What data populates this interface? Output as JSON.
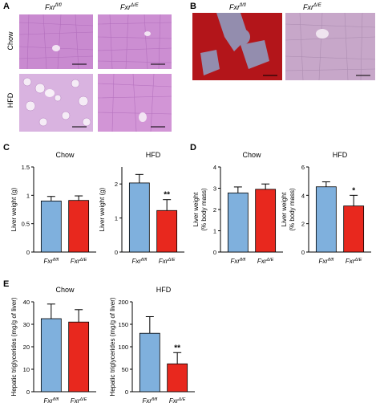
{
  "panels": {
    "A": "A",
    "B": "B",
    "C": "C",
    "D": "D",
    "E": "E"
  },
  "genotypes": {
    "wt_base": "Fxr",
    "wt_sup": "fl/fl",
    "ko_base": "Fxr",
    "ko_sup": "Δ/E"
  },
  "rows": {
    "chow": "Chow",
    "hfd": "HFD"
  },
  "colors": {
    "control": "#7fb0dd",
    "knockout": "#e8281e",
    "he_bg": "#c98ad0",
    "oilred": "#b3151a"
  },
  "chart_data": [
    {
      "id": "C-chow",
      "type": "bar",
      "title": "Chow",
      "ylabel": "Liver weight (g)",
      "ylim": [
        0,
        1.5
      ],
      "yticks": [
        0,
        0.5,
        1.0,
        1.5
      ],
      "categories": [
        "Fxr fl/fl",
        "Fxr Δ/E"
      ],
      "values": [
        0.9,
        0.91
      ],
      "errors": [
        0.08,
        0.08
      ],
      "significance": [
        "",
        ""
      ]
    },
    {
      "id": "C-hfd",
      "type": "bar",
      "title": "HFD",
      "ylabel": "Liver weight (g)",
      "ylim": [
        0,
        2.5
      ],
      "yticks": [
        0,
        1,
        2
      ],
      "categories": [
        "Fxr fl/fl",
        "Fxr Δ/E"
      ],
      "values": [
        2.03,
        1.22
      ],
      "errors": [
        0.25,
        0.32
      ],
      "significance": [
        "",
        "**"
      ]
    },
    {
      "id": "D-chow",
      "type": "bar",
      "title": "Chow",
      "ylabel": "Liver weight (% body mass)",
      "ylim": [
        0,
        4
      ],
      "yticks": [
        0,
        1,
        2,
        3,
        4
      ],
      "categories": [
        "Fxr fl/fl",
        "Fxr Δ/E"
      ],
      "values": [
        2.78,
        2.95
      ],
      "errors": [
        0.28,
        0.25
      ],
      "significance": [
        "",
        ""
      ]
    },
    {
      "id": "D-hfd",
      "type": "bar",
      "title": "HFD",
      "ylabel": "Liver weight (% body mass)",
      "ylim": [
        0,
        6
      ],
      "yticks": [
        0,
        2,
        4,
        6
      ],
      "categories": [
        "Fxr fl/fl",
        "Fxr Δ/E"
      ],
      "values": [
        4.6,
        3.25
      ],
      "errors": [
        0.35,
        0.75
      ],
      "significance": [
        "",
        "*"
      ]
    },
    {
      "id": "E-chow",
      "type": "bar",
      "title": "Chow",
      "ylabel": "Hepatic triglycerides (mg/g of liver)",
      "ylim": [
        0,
        40
      ],
      "yticks": [
        0,
        10,
        20,
        30,
        40
      ],
      "categories": [
        "Fxr fl/fl",
        "Fxr Δ/E"
      ],
      "values": [
        32.5,
        31.0
      ],
      "errors": [
        6.5,
        5.5
      ],
      "significance": [
        "",
        ""
      ]
    },
    {
      "id": "E-hfd",
      "type": "bar",
      "title": "HFD",
      "ylabel": "Hepatic triglycerides (mg/g of liver)",
      "ylim": [
        0,
        200
      ],
      "yticks": [
        0,
        50,
        100,
        150,
        200
      ],
      "categories": [
        "Fxr fl/fl",
        "Fxr Δ/E"
      ],
      "values": [
        130,
        62
      ],
      "errors": [
        37,
        25
      ],
      "significance": [
        "",
        "**"
      ]
    }
  ]
}
